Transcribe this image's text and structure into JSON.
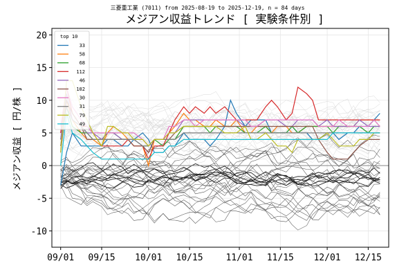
{
  "chart_data": {
    "type": "line",
    "subtitle": "三菱重工業 (7011) from 2025-08-19 to 2025-12-19, n = 84 days",
    "title": "メジアン収益トレンド [ 実験条件別 ]",
    "ylabel": "メジアン収益 [ 円/株 ]",
    "xlabel": "",
    "x_ticks": [
      "09/01",
      "09/15",
      "10/01",
      "10/15",
      "11/01",
      "11/15",
      "12/01",
      "12/15"
    ],
    "y_ticks": [
      -10,
      -5,
      0,
      5,
      10,
      15,
      20
    ],
    "ylim": [
      -12.5,
      21
    ],
    "xlim": [
      "2025-08-29",
      "2025-12-22"
    ],
    "grid": true,
    "legend": {
      "title": "top 10",
      "position": "top-left"
    },
    "x": [
      "2025-09-01",
      "2025-09-03",
      "2025-09-05",
      "2025-09-08",
      "2025-09-10",
      "2025-09-12",
      "2025-09-15",
      "2025-09-17",
      "2025-09-19",
      "2025-09-22",
      "2025-09-24",
      "2025-09-26",
      "2025-09-29",
      "2025-10-01",
      "2025-10-03",
      "2025-10-06",
      "2025-10-08",
      "2025-10-10",
      "2025-10-13",
      "2025-10-15",
      "2025-10-17",
      "2025-10-20",
      "2025-10-22",
      "2025-10-24",
      "2025-10-27",
      "2025-10-29",
      "2025-10-31",
      "2025-11-03",
      "2025-11-05",
      "2025-11-07",
      "2025-11-10",
      "2025-11-12",
      "2025-11-14",
      "2025-11-17",
      "2025-11-19",
      "2025-11-21",
      "2025-11-24",
      "2025-11-26",
      "2025-11-28",
      "2025-12-01",
      "2025-12-03",
      "2025-12-05",
      "2025-12-08",
      "2025-12-10",
      "2025-12-12",
      "2025-12-15",
      "2025-12-17",
      "2025-12-19"
    ],
    "series": [
      {
        "name": "33",
        "color": "#1f77b4",
        "values": [
          -3,
          2,
          5,
          3,
          3,
          3,
          3,
          4,
          4,
          3,
          3,
          4,
          5,
          4,
          2,
          2,
          3,
          3,
          5,
          4,
          4,
          4,
          3,
          4,
          6,
          10,
          8,
          6,
          7,
          7,
          7,
          5,
          5,
          5,
          6,
          5,
          5,
          4,
          4,
          5,
          5,
          4,
          5,
          5,
          6,
          6,
          7,
          8
        ]
      },
      {
        "name": "58",
        "color": "#ff7f0e",
        "values": [
          3,
          10,
          7,
          5,
          4,
          4,
          3,
          5,
          6,
          5,
          4,
          3,
          3,
          0,
          4,
          4,
          5,
          6,
          8,
          7,
          7,
          6,
          6,
          7,
          6,
          6,
          7,
          5,
          5,
          6,
          6,
          5,
          6,
          6,
          5,
          5,
          6,
          6,
          6,
          6,
          6,
          6,
          6,
          6,
          7,
          7,
          7,
          7
        ]
      },
      {
        "name": "68",
        "color": "#2ca02c",
        "values": [
          4,
          9,
          6,
          5,
          5,
          4,
          4,
          5,
          5,
          4,
          4,
          4,
          3,
          3,
          4,
          3,
          4,
          4,
          6,
          6,
          6,
          6,
          5,
          6,
          6,
          6,
          6,
          5,
          5,
          5,
          6,
          5,
          5,
          5,
          6,
          5,
          6,
          6,
          6,
          6,
          5,
          6,
          6,
          6,
          6,
          5,
          6,
          6
        ]
      },
      {
        "name": "112",
        "color": "#d62728",
        "values": [
          5,
          12,
          8,
          6,
          6,
          5,
          3,
          3,
          3,
          3,
          4,
          3,
          3,
          1,
          3,
          3,
          5,
          7,
          9,
          8,
          9,
          8,
          9,
          8,
          9,
          8,
          7,
          7,
          7,
          7,
          9,
          10,
          9,
          7,
          8,
          12,
          11,
          10,
          7,
          7,
          7,
          7,
          7,
          7,
          7,
          7,
          7,
          7
        ]
      },
      {
        "name": "46",
        "color": "#9467bd",
        "values": [
          4,
          11,
          7,
          6,
          5,
          5,
          4,
          5,
          5,
          4,
          4,
          4,
          3,
          2,
          4,
          4,
          5,
          5,
          7,
          7,
          7,
          7,
          7,
          7,
          7,
          7,
          7,
          6,
          6,
          6,
          7,
          7,
          7,
          6,
          6,
          7,
          7,
          7,
          6,
          7,
          6,
          6,
          6,
          6,
          7,
          6,
          6,
          6
        ]
      },
      {
        "name": "102",
        "color": "#8c564b",
        "values": [
          2,
          10,
          8,
          6,
          4,
          4,
          4,
          4,
          4,
          4,
          4,
          3,
          3,
          2,
          4,
          4,
          4,
          5,
          6,
          6,
          6,
          6,
          6,
          6,
          6,
          6,
          6,
          6,
          6,
          6,
          6,
          6,
          6,
          6,
          6,
          6,
          6,
          6,
          4,
          2,
          1,
          1,
          1,
          2,
          3,
          4,
          4,
          4
        ]
      },
      {
        "name": "30",
        "color": "#e377c2",
        "values": [
          6,
          12,
          9,
          7,
          6,
          5,
          5,
          5,
          5,
          5,
          5,
          5,
          4,
          3,
          4,
          4,
          6,
          6,
          7,
          7,
          6,
          7,
          7,
          7,
          7,
          7,
          7,
          7,
          6,
          6,
          7,
          7,
          7,
          7,
          7,
          7,
          7,
          7,
          6,
          6,
          6,
          7,
          6,
          6,
          6,
          6,
          7,
          6
        ]
      },
      {
        "name": "31",
        "color": "#7f7f7f",
        "values": [
          3,
          9,
          7,
          6,
          5,
          4,
          4,
          4,
          4,
          4,
          4,
          4,
          3,
          3,
          4,
          4,
          4,
          4,
          5,
          5,
          5,
          5,
          5,
          5,
          5,
          5,
          5,
          5,
          5,
          5,
          5,
          5,
          5,
          5,
          5,
          5,
          5,
          5,
          5,
          5,
          5,
          5,
          5,
          5,
          5,
          5,
          5,
          5
        ]
      },
      {
        "name": "79",
        "color": "#bcbd22",
        "values": [
          2,
          13,
          13,
          9,
          7,
          5,
          3,
          6,
          6,
          5,
          5,
          4,
          4,
          3,
          4,
          4,
          5,
          5,
          6,
          6,
          6,
          6,
          6,
          6,
          5,
          5,
          5,
          6,
          4,
          4,
          5,
          4,
          3,
          3,
          2,
          4,
          4,
          4,
          4,
          5,
          4,
          3,
          3,
          3,
          4,
          4,
          5,
          5
        ]
      },
      {
        "name": "49",
        "color": "#17becf",
        "values": [
          0,
          8,
          5,
          4,
          3,
          2,
          1,
          1,
          1,
          1,
          1,
          1,
          1,
          1,
          2,
          2,
          3,
          3,
          4,
          4,
          4,
          4,
          4,
          4,
          4,
          4,
          4,
          4,
          4,
          4,
          4,
          4,
          4,
          4,
          4,
          4,
          4,
          4,
          4,
          4,
          5,
          5,
          5,
          5,
          5,
          5,
          5,
          5
        ]
      }
    ]
  }
}
